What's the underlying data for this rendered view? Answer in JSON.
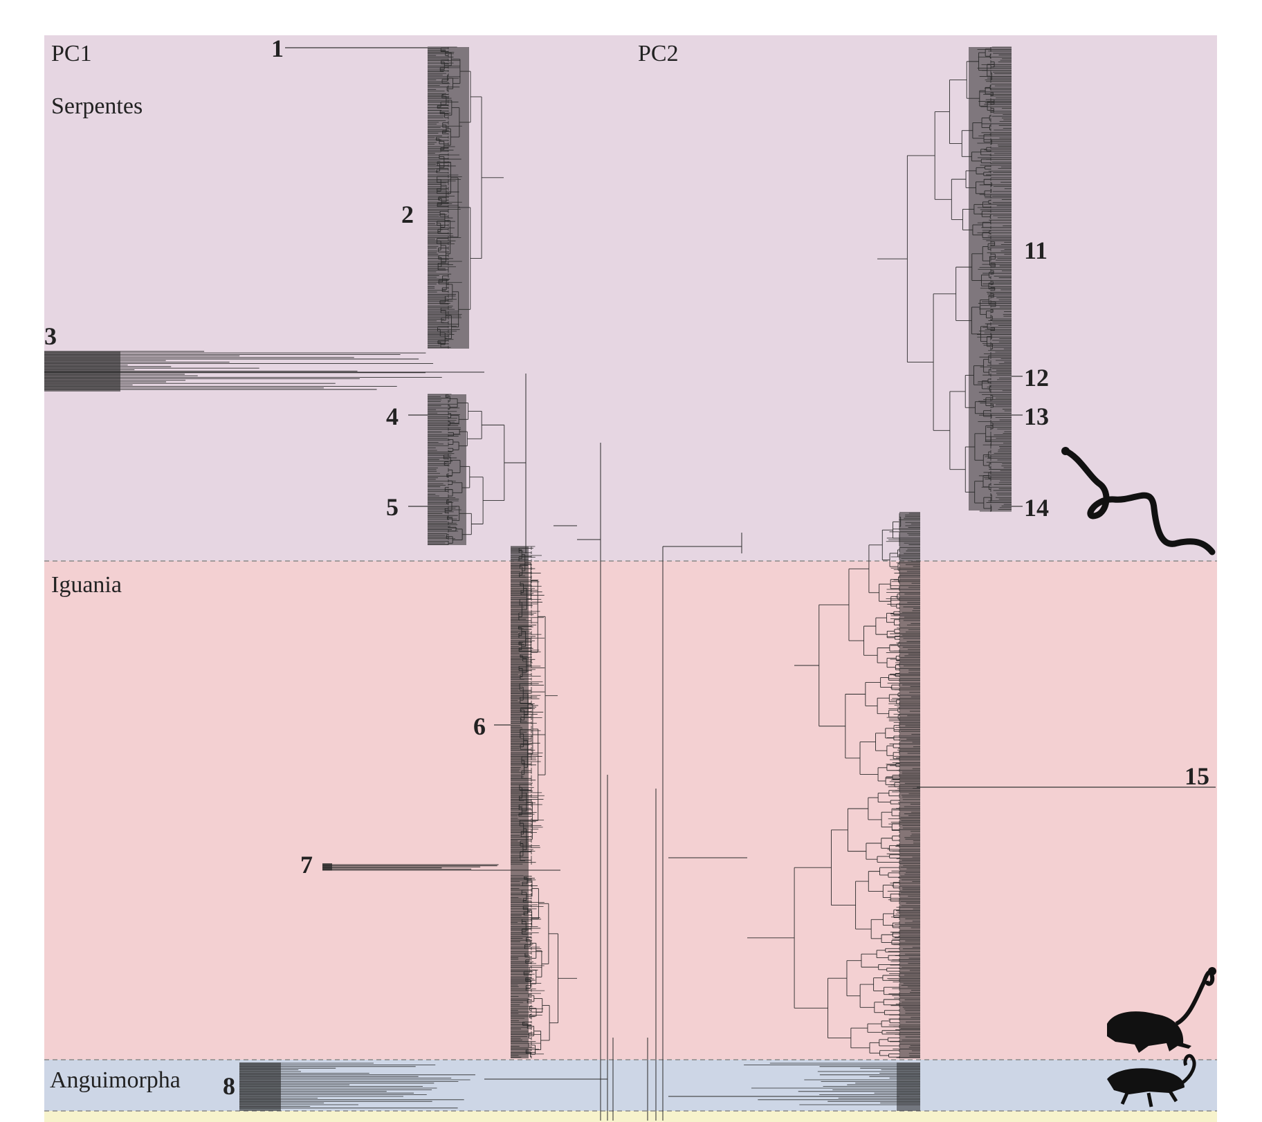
{
  "panels": {
    "left": "PC1",
    "right": "PC2"
  },
  "clades": [
    {
      "id": "serpentes",
      "name": "Serpentes",
      "color": "#e6d6e2"
    },
    {
      "id": "iguania",
      "name": "Iguania",
      "color": "#f3d0d2"
    },
    {
      "id": "anguimorpha",
      "name": "Anguimorpha",
      "color": "#cdd6e6"
    },
    {
      "id": "next-clade",
      "name": "",
      "color": "#f7f3cc"
    }
  ],
  "markers": [
    "1",
    "2",
    "3",
    "4",
    "5",
    "6",
    "7",
    "8",
    "11",
    "12",
    "13",
    "14",
    "15"
  ],
  "colors": {
    "tree": "#2a2a2a",
    "divider": "#888888",
    "silhouette": "#111111"
  },
  "icons": [
    "snake-silhouette-icon",
    "chameleon-silhouette-icon",
    "gecko-silhouette-icon"
  ]
}
